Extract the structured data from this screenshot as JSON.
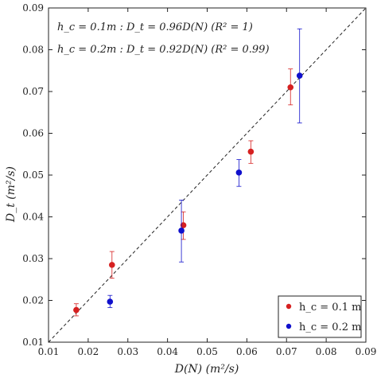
{
  "chart_data": {
    "type": "scatter",
    "title": "",
    "xlabel": "D(N)  (m²/s)",
    "ylabel": "D_t  (m²/s)",
    "xlim": [
      0.01,
      0.09
    ],
    "ylim": [
      0.01,
      0.09
    ],
    "x_ticks": [
      "0.01",
      "0.02",
      "0.03",
      "0.04",
      "0.05",
      "0.06",
      "0.07",
      "0.08",
      "0.09"
    ],
    "y_ticks": [
      "0.01",
      "0.02",
      "0.03",
      "0.04",
      "0.05",
      "0.06",
      "0.07",
      "0.08",
      "0.09"
    ],
    "grid": false,
    "legend_placement": "bottom-right",
    "reference_line": {
      "style": "dashed",
      "from": [
        0.01,
        0.01
      ],
      "to": [
        0.09,
        0.09
      ]
    },
    "annotations": [
      "h_c = 0.1m : D_t = 0.96D(N)    (R² = 1)",
      "h_c = 0.2m : D_t = 0.92D(N)    (R² = 0.99)"
    ],
    "series": [
      {
        "name": "h_c = 0.1 m",
        "color": "#d62020",
        "points": [
          {
            "x": 0.017,
            "y": 0.0177,
            "ylo": 0.0163,
            "yhi": 0.0192
          },
          {
            "x": 0.026,
            "y": 0.0285,
            "ylo": 0.0253,
            "yhi": 0.0317
          },
          {
            "x": 0.044,
            "y": 0.038,
            "ylo": 0.0346,
            "yhi": 0.0412
          },
          {
            "x": 0.061,
            "y": 0.0556,
            "ylo": 0.0528,
            "yhi": 0.0582
          },
          {
            "x": 0.071,
            "y": 0.071,
            "ylo": 0.0668,
            "yhi": 0.0754
          }
        ]
      },
      {
        "name": "h_c = 0.2 m",
        "color": "#1010cc",
        "points": [
          {
            "x": 0.0255,
            "y": 0.0197,
            "ylo": 0.0183,
            "yhi": 0.0212
          },
          {
            "x": 0.0435,
            "y": 0.0367,
            "ylo": 0.0292,
            "yhi": 0.044
          },
          {
            "x": 0.058,
            "y": 0.0506,
            "ylo": 0.0473,
            "yhi": 0.0537
          },
          {
            "x": 0.0733,
            "y": 0.0738,
            "ylo": 0.0625,
            "yhi": 0.085
          }
        ]
      }
    ]
  }
}
